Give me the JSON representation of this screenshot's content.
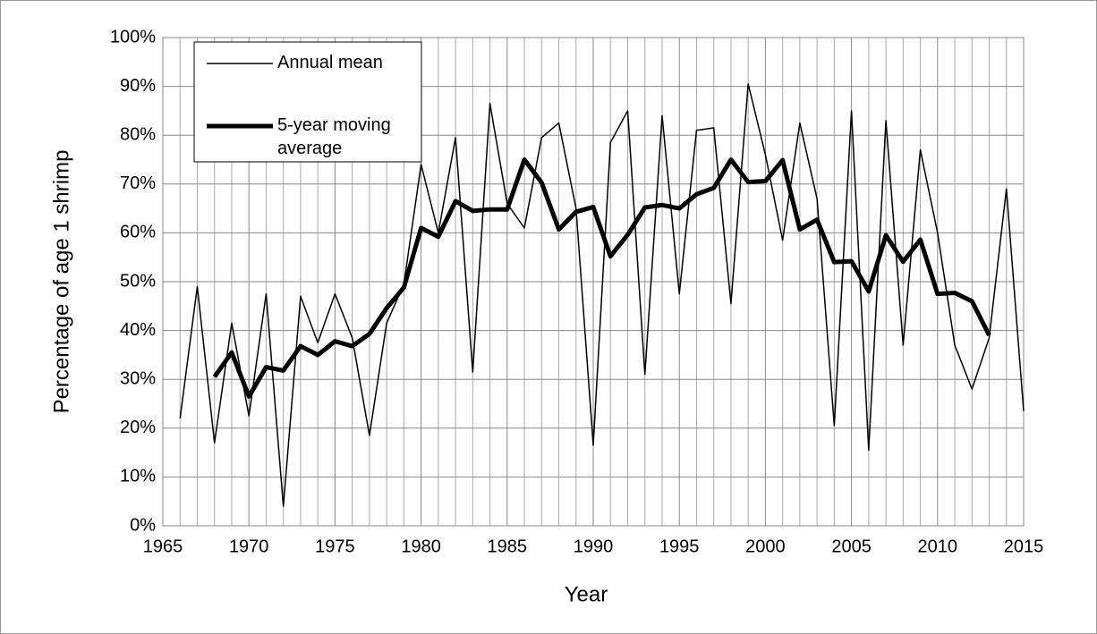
{
  "chart_data": {
    "type": "line",
    "x_label": "Year",
    "y_label": "Percentage of age 1 shrimp",
    "x": [
      1966,
      1967,
      1968,
      1969,
      1970,
      1971,
      1972,
      1973,
      1974,
      1975,
      1976,
      1977,
      1978,
      1979,
      1980,
      1981,
      1982,
      1983,
      1984,
      1985,
      1986,
      1987,
      1988,
      1989,
      1990,
      1991,
      1992,
      1993,
      1994,
      1995,
      1996,
      1997,
      1998,
      1999,
      2000,
      2001,
      2002,
      2003,
      2004,
      2005,
      2006,
      2007,
      2008,
      2009,
      2010,
      2011,
      2012,
      2013,
      2014,
      2015
    ],
    "series": [
      {
        "name": "Annual mean",
        "color": "#000000",
        "width": 1.5,
        "values": [
          22,
          49,
          17,
          41.5,
          22.5,
          47.5,
          4,
          47,
          37.5,
          47.5,
          38.5,
          18.5,
          41.5,
          49.5,
          74,
          60,
          79.5,
          31.5,
          86.5,
          66,
          61,
          79.5,
          82.5,
          65,
          16.5,
          78.5,
          85,
          31,
          84,
          47.5,
          81,
          81.5,
          45.5,
          90.5,
          76,
          58.5,
          82.5,
          67,
          20.5,
          85,
          15.5,
          83,
          37,
          77,
          60,
          37,
          28,
          38.5,
          69,
          23.5
        ]
      },
      {
        "name": "5-year moving average",
        "color": "#000000",
        "width": 5,
        "values": [
          null,
          null,
          30.5,
          35.5,
          26.5,
          32.5,
          31.8,
          36.8,
          35,
          37.8,
          36.8,
          39.3,
          44.6,
          48.8,
          61,
          59.2,
          66.5,
          64.5,
          64.8,
          64.8,
          75,
          70.3,
          60.7,
          64.3,
          65.3,
          55.2,
          59.6,
          65.2,
          65.7,
          65,
          67.9,
          69.2,
          75,
          70.4,
          70.6,
          74.9,
          60.7,
          62.7,
          54,
          54.2,
          48,
          59.5,
          54.1,
          58.6,
          47.5,
          47.7,
          46,
          39,
          null,
          null
        ]
      }
    ],
    "xlim": [
      1965,
      2015
    ],
    "xticks": [
      1965,
      1970,
      1975,
      1980,
      1985,
      1990,
      1995,
      2000,
      2005,
      2010,
      2015
    ],
    "xminorticks": [
      1966,
      1967,
      1968,
      1969,
      1971,
      1972,
      1973,
      1974,
      1976,
      1977,
      1978,
      1979,
      1981,
      1982,
      1983,
      1984,
      1986,
      1987,
      1988,
      1989,
      1991,
      1992,
      1993,
      1994,
      1996,
      1997,
      1998,
      1999,
      2001,
      2002,
      2003,
      2004,
      2006,
      2007,
      2008,
      2009,
      2011,
      2012,
      2013,
      2014
    ],
    "ylim": [
      0,
      100
    ],
    "yticks": [
      {
        "value": 0,
        "label": "0%"
      },
      {
        "value": 10,
        "label": "10%"
      },
      {
        "value": 20,
        "label": "20%"
      },
      {
        "value": 30,
        "label": "30%"
      },
      {
        "value": 40,
        "label": "40%"
      },
      {
        "value": 50,
        "label": "50%"
      },
      {
        "value": 60,
        "label": "60%"
      },
      {
        "value": 70,
        "label": "70%"
      },
      {
        "value": 80,
        "label": "80%"
      },
      {
        "value": 90,
        "label": "90%"
      },
      {
        "value": 100,
        "label": "100%"
      }
    ],
    "grid": true,
    "legend": "top-left"
  }
}
